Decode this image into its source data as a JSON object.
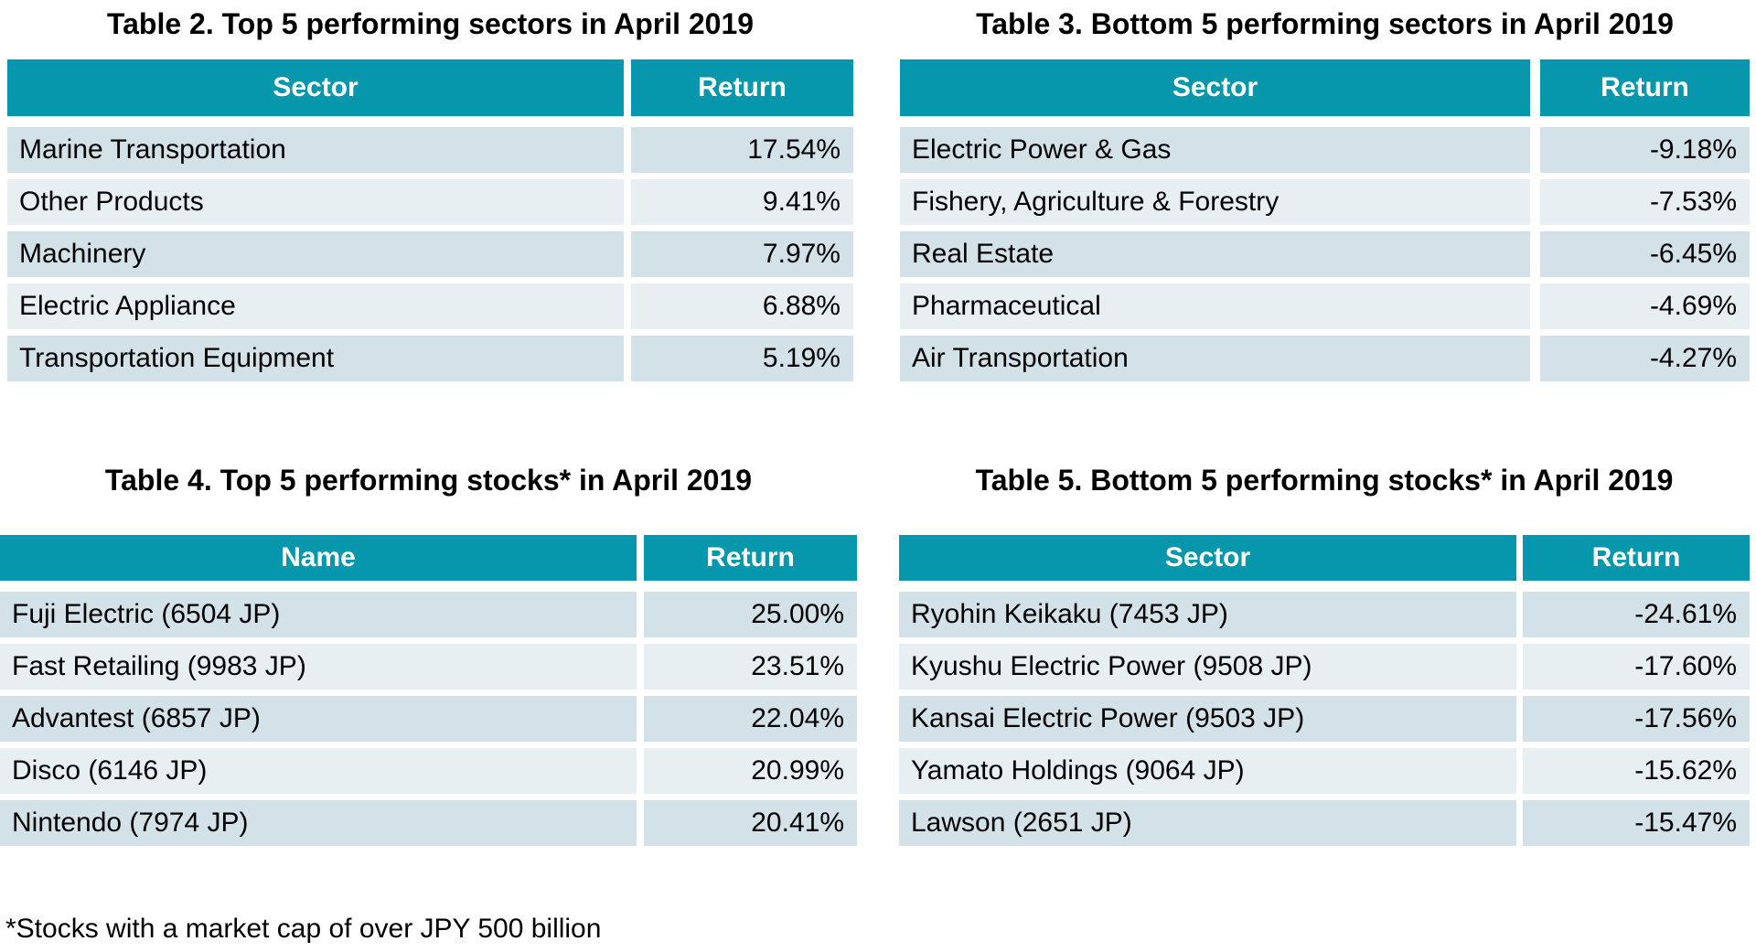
{
  "footnote": "*Stocks with a market cap of over JPY 500 billion",
  "colors": {
    "header_bg": "#0797AC",
    "header_text": "#FFFFFF",
    "row_dark": "#D3E1E8",
    "row_light": "#E8EFF3",
    "text": "#000000",
    "background": "#FFFFFF"
  },
  "tables": [
    {
      "title": "Table 2. Top 5 performing sectors in April 2019",
      "columns": [
        "Sector",
        "Return"
      ],
      "rows": [
        {
          "label": "Marine Transportation",
          "return": "17.54%"
        },
        {
          "label": "Other Products",
          "return": "9.41%"
        },
        {
          "label": "Machinery",
          "return": "7.97%"
        },
        {
          "label": "Electric Appliance",
          "return": "6.88%"
        },
        {
          "label": "Transportation Equipment",
          "return": "5.19%"
        }
      ]
    },
    {
      "title": "Table 3. Bottom 5 performing sectors in April 2019",
      "columns": [
        "Sector",
        "Return"
      ],
      "rows": [
        {
          "label": "Electric Power & Gas",
          "return": "-9.18%"
        },
        {
          "label": "Fishery, Agriculture & Forestry",
          "return": "-7.53%"
        },
        {
          "label": "Real Estate",
          "return": "-6.45%"
        },
        {
          "label": "Pharmaceutical",
          "return": "-4.69%"
        },
        {
          "label": "Air Transportation",
          "return": "-4.27%"
        }
      ]
    },
    {
      "title": "Table 4. Top 5 performing stocks* in April 2019",
      "columns": [
        "Name",
        "Return"
      ],
      "rows": [
        {
          "label": "Fuji Electric (6504 JP)",
          "return": "25.00%"
        },
        {
          "label": "Fast Retailing (9983 JP)",
          "return": "23.51%"
        },
        {
          "label": "Advantest (6857 JP)",
          "return": "22.04%"
        },
        {
          "label": "Disco (6146 JP)",
          "return": "20.99%"
        },
        {
          "label": "Nintendo (7974 JP)",
          "return": "20.41%"
        }
      ]
    },
    {
      "title": "Table 5. Bottom 5 performing stocks* in April 2019",
      "columns": [
        "Sector",
        "Return"
      ],
      "rows": [
        {
          "label": "Ryohin Keikaku (7453 JP)",
          "return": "-24.61%"
        },
        {
          "label": "Kyushu Electric Power (9508 JP)",
          "return": "-17.60%"
        },
        {
          "label": "Kansai Electric Power (9503 JP)",
          "return": "-17.56%"
        },
        {
          "label": "Yamato Holdings (9064 JP)",
          "return": "-15.62%"
        },
        {
          "label": "Lawson (2651 JP)",
          "return": "-15.47%"
        }
      ]
    }
  ],
  "chart_data": [
    {
      "type": "table",
      "title": "Table 2. Top 5 performing sectors in April 2019",
      "columns": [
        "Sector",
        "Return"
      ],
      "categories": [
        "Marine Transportation",
        "Other Products",
        "Machinery",
        "Electric Appliance",
        "Transportation Equipment"
      ],
      "values": [
        17.54,
        9.41,
        7.97,
        6.88,
        5.19
      ]
    },
    {
      "type": "table",
      "title": "Table 3. Bottom 5 performing sectors in April 2019",
      "columns": [
        "Sector",
        "Return"
      ],
      "categories": [
        "Electric Power & Gas",
        "Fishery, Agriculture & Forestry",
        "Real Estate",
        "Pharmaceutical",
        "Air Transportation"
      ],
      "values": [
        -9.18,
        -7.53,
        -6.45,
        -4.69,
        -4.27
      ]
    },
    {
      "type": "table",
      "title": "Table 4. Top 5 performing stocks* in April 2019",
      "columns": [
        "Name",
        "Return"
      ],
      "categories": [
        "Fuji Electric (6504 JP)",
        "Fast Retailing (9983 JP)",
        "Advantest (6857 JP)",
        "Disco (6146 JP)",
        "Nintendo (7974 JP)"
      ],
      "values": [
        25.0,
        23.51,
        22.04,
        20.99,
        20.41
      ]
    },
    {
      "type": "table",
      "title": "Table 5. Bottom 5 performing stocks* in April 2019",
      "columns": [
        "Sector",
        "Return"
      ],
      "categories": [
        "Ryohin Keikaku (7453 JP)",
        "Kyushu Electric Power (9508 JP)",
        "Kansai Electric Power (9503 JP)",
        "Yamato Holdings (9064 JP)",
        "Lawson (2651 JP)"
      ],
      "values": [
        -24.61,
        -17.6,
        -17.56,
        -15.62,
        -15.47
      ]
    }
  ]
}
